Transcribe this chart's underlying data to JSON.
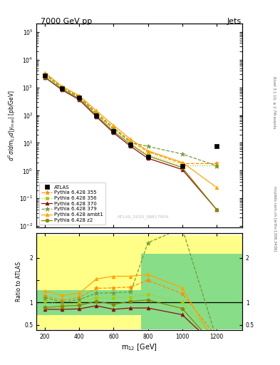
{
  "title_left": "7000 GeV pp",
  "title_right": "Jets",
  "right_label_top": "Rivet 3.1.10, ≥ 2.7M events",
  "right_label_bot": "mcplots.cern.ch [arXiv:1306.3436]",
  "watermark": "ATLAS_2010_S8817804",
  "xlabel": "m$_{12}$ [GeV]",
  "ylabel": "d$^2\\sigma$/dm$_{12}$d|y$_{max}$| [pb/GeV]",
  "ratio_ylabel": "Ratio to ATLAS",
  "x_values": [
    200,
    300,
    400,
    500,
    600,
    700,
    800,
    1000,
    1200
  ],
  "atlas_y": [
    2700,
    950,
    420,
    95,
    27,
    8.5,
    3.2,
    1.5,
    7.5
  ],
  "p355_y": [
    3100,
    1000,
    470,
    125,
    36,
    11.5,
    4.8,
    1.8,
    1.8
  ],
  "p356_y": [
    2800,
    900,
    420,
    105,
    30,
    9.5,
    3.8,
    1.5,
    1.5
  ],
  "p370_y": [
    2300,
    810,
    360,
    88,
    23,
    7.5,
    2.8,
    1.1,
    0.04
  ],
  "p379_y": [
    3000,
    960,
    450,
    115,
    33,
    10.5,
    7.5,
    4.0,
    1.5
  ],
  "pambt1_y": [
    3400,
    1100,
    510,
    145,
    43,
    13.5,
    5.2,
    2.0,
    0.25
  ],
  "pz2_y": [
    2400,
    870,
    395,
    98,
    26,
    8.8,
    3.4,
    1.3,
    0.04
  ],
  "p355_ratio": [
    1.15,
    1.05,
    1.12,
    1.32,
    1.33,
    1.35,
    1.5,
    1.2,
    0.24
  ],
  "p356_ratio": [
    1.04,
    0.95,
    1.0,
    1.11,
    1.11,
    1.12,
    1.19,
    1.0,
    0.2
  ],
  "p370_ratio": [
    0.85,
    0.85,
    0.86,
    0.93,
    0.85,
    0.88,
    0.88,
    0.73,
    0.005
  ],
  "p379_ratio": [
    1.11,
    1.01,
    1.07,
    1.21,
    1.22,
    1.24,
    2.34,
    2.67,
    0.2
  ],
  "pambt1_ratio": [
    1.26,
    1.16,
    1.21,
    1.53,
    1.59,
    1.59,
    1.63,
    1.33,
    0.033
  ],
  "pz2_ratio": [
    0.89,
    0.92,
    0.94,
    1.03,
    0.96,
    1.03,
    1.06,
    0.87,
    0.005
  ],
  "band_edges": [
    150,
    260,
    360,
    460,
    560,
    660,
    760,
    900,
    1100,
    1350
  ],
  "yellow_lo": [
    0.4,
    0.4,
    0.4,
    0.4,
    0.4,
    0.4,
    0.4,
    0.4,
    0.4
  ],
  "yellow_hi": [
    2.5,
    2.5,
    2.5,
    2.5,
    2.5,
    2.5,
    2.5,
    2.5,
    2.5
  ],
  "green_lo": [
    0.72,
    0.72,
    0.72,
    0.72,
    0.72,
    0.72,
    0.4,
    0.4,
    0.4
  ],
  "green_hi": [
    1.28,
    1.28,
    1.28,
    1.28,
    1.28,
    1.28,
    2.1,
    2.1,
    2.1
  ],
  "color_355": "#FF8C00",
  "color_356": "#AACC00",
  "color_370": "#8B1010",
  "color_379": "#779933",
  "color_ambt1": "#FFA500",
  "color_z2": "#888800",
  "color_atlas": "#000000",
  "ylim_main": [
    0.009,
    200000.0
  ],
  "ylim_ratio": [
    0.38,
    2.55
  ],
  "xlim": [
    150,
    1350
  ]
}
